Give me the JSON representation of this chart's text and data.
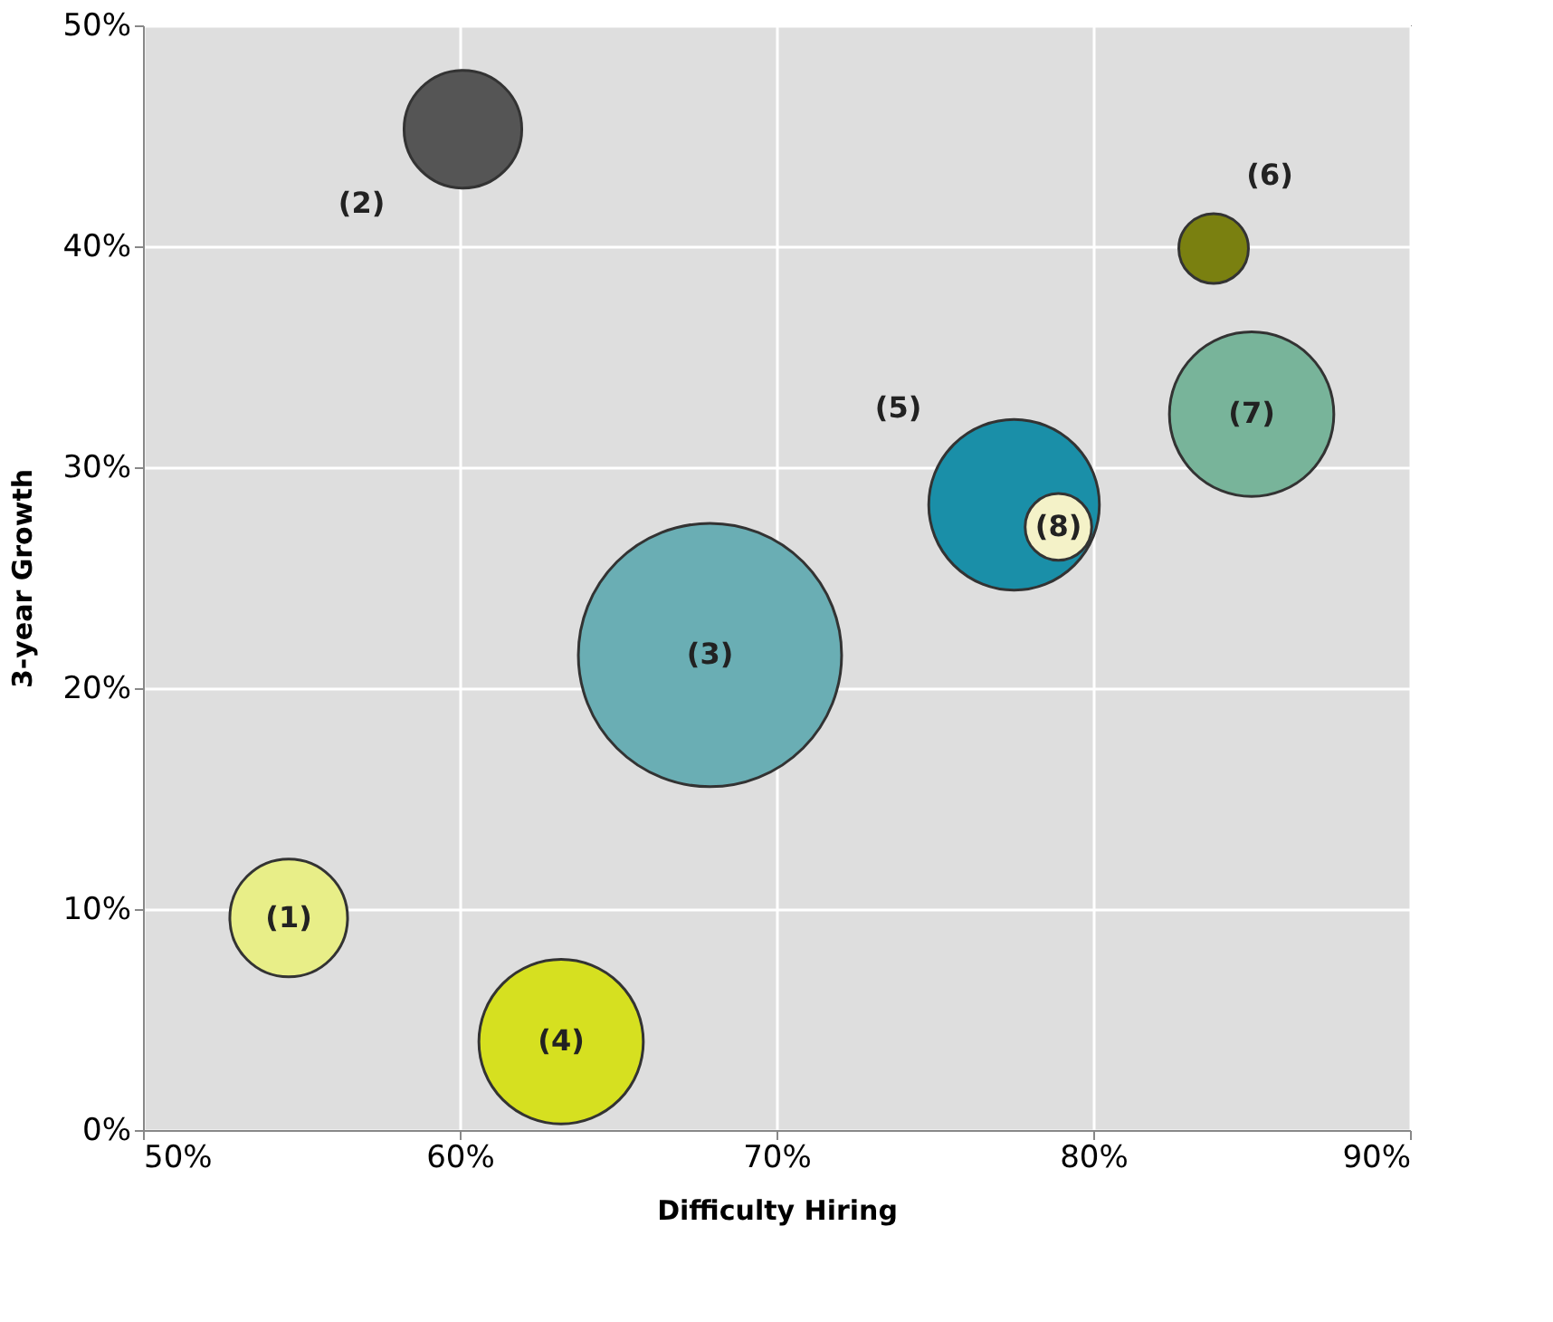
{
  "chart_data": {
    "type": "bubble",
    "xlabel": "Difficulty  Hiring",
    "ylabel": "3-year Growth",
    "x": [
      54.6,
      60.1,
      67.9,
      63.2,
      77.5,
      83.8,
      85.0,
      78.9
    ],
    "values": [
      9.6,
      45.3,
      21.5,
      4.0,
      28.3,
      39.9,
      32.4,
      27.3
    ],
    "sizes": [
      0.2,
      0.2,
      1,
      0.39,
      0.42,
      0.07,
      0.39,
      0.064
    ],
    "colors": [
      "#e8ee88",
      "#555555",
      "#6aaeb4",
      "#d6e020",
      "#1a8fa8",
      "#7a8010",
      "#78b49a",
      "#f4f2c8"
    ],
    "xlim": [
      50,
      90
    ],
    "ylim": [
      0,
      50
    ],
    "xticks": [
      {
        "value": 50,
        "label": "50%"
      },
      {
        "value": 60,
        "label": "60%"
      },
      {
        "value": 70,
        "label": "70%"
      },
      {
        "value": 80,
        "label": "80%"
      },
      {
        "value": 90,
        "label": "90%"
      }
    ],
    "yticks": [
      {
        "value": 0,
        "label": "0%"
      },
      {
        "value": 10,
        "label": "10%"
      },
      {
        "value": 20,
        "label": "20%"
      },
      {
        "value": 30,
        "label": "30%"
      },
      {
        "value": 40,
        "label": "40%"
      },
      {
        "value": 50,
        "label": "50%"
      }
    ],
    "grid": true,
    "legend": false,
    "annotations": [
      {
        "text": "(1)",
        "x": 54.6,
        "y": 9.6
      },
      "(2)",
      {
        "text": "(3)",
        "x": 67.9,
        "y": 21.5
      },
      {
        "text": "(4)",
        "x": 63.2,
        "y": 4.0
      },
      "(5)",
      "(6)",
      {
        "text": "(7)",
        "x": 85.0,
        "y": 32.4
      },
      {
        "text": "(8)",
        "x": 78.9,
        "y": 27.3
      }
    ]
  }
}
